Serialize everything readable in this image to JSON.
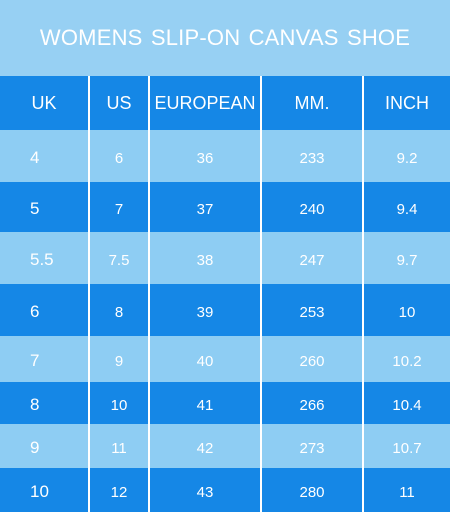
{
  "title": "WOMENS  SLIP-ON CANVAS SHOE",
  "columns": [
    "UK",
    "US",
    "EUROPEAN",
    "MM.",
    "INCH"
  ],
  "rows": [
    [
      "4",
      "6",
      "36",
      "233",
      "9.2"
    ],
    [
      "5",
      "7",
      "37",
      "240",
      "9.4"
    ],
    [
      "5.5",
      "7.5",
      "38",
      "247",
      "9.7"
    ],
    [
      "6",
      "8",
      "39",
      "253",
      "10"
    ],
    [
      "7",
      "9",
      "40",
      "260",
      "10.2"
    ],
    [
      "8",
      "10",
      "41",
      "266",
      "10.4"
    ],
    [
      "9",
      "11",
      "42",
      "273",
      "10.7"
    ],
    [
      "10",
      "12",
      "43",
      "280",
      "11"
    ]
  ],
  "colors": {
    "title_bg": "#97d0f3",
    "header_bg": "#1587e6",
    "row_light": "#8ecdf3",
    "row_dark": "#1587e6",
    "text": "#ffffff"
  }
}
